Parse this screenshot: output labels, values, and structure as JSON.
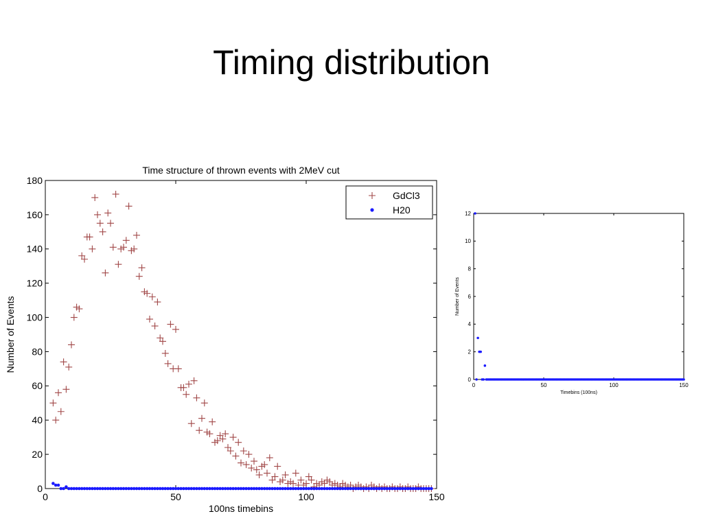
{
  "slide": {
    "title": "Timing distribution"
  },
  "chart_data": [
    {
      "type": "scatter",
      "title": "Time structure of thrown events with 2MeV cut",
      "xlabel": "100ns timebins",
      "ylabel": "Number of Events",
      "xlim": [
        0,
        150
      ],
      "ylim": [
        0,
        180
      ],
      "xticks": [
        0,
        50,
        100,
        150
      ],
      "yticks": [
        0,
        20,
        40,
        60,
        80,
        100,
        120,
        140,
        160,
        180
      ],
      "grid": false,
      "legend": "top-right",
      "series": [
        {
          "name": "GdCl3",
          "marker": "plus",
          "color": "#a04646",
          "x": [
            3,
            4,
            5,
            6,
            7,
            8,
            9,
            10,
            11,
            12,
            13,
            14,
            15,
            16,
            17,
            18,
            19,
            20,
            21,
            22,
            23,
            24,
            25,
            26,
            27,
            28,
            29,
            30,
            31,
            32,
            33,
            34,
            35,
            36,
            37,
            38,
            39,
            40,
            41,
            42,
            43,
            44,
            45,
            46,
            47,
            48,
            49,
            50,
            51,
            52,
            53,
            54,
            55,
            56,
            57,
            58,
            59,
            60,
            61,
            62,
            63,
            64,
            65,
            66,
            67,
            68,
            69,
            70,
            71,
            72,
            73,
            74,
            75,
            76,
            77,
            78,
            79,
            80,
            81,
            82,
            83,
            84,
            85,
            86,
            87,
            88,
            89,
            90,
            91,
            92,
            93,
            94,
            95,
            96,
            97,
            98,
            99,
            100,
            101,
            102,
            103,
            104,
            105,
            106,
            107,
            108,
            109,
            110,
            111,
            112,
            113,
            114,
            115,
            116,
            117,
            118,
            119,
            120,
            121,
            122,
            123,
            124,
            125,
            126,
            127,
            128,
            129,
            130,
            131,
            132,
            133,
            134,
            135,
            136,
            137,
            138,
            139,
            140,
            141,
            142,
            143,
            144,
            145,
            146,
            147,
            148
          ],
          "y": [
            50,
            40,
            56,
            45,
            74,
            58,
            71,
            84,
            100,
            106,
            105,
            136,
            134,
            147,
            147,
            140,
            170,
            160,
            155,
            150,
            126,
            161,
            155,
            141,
            172,
            131,
            140,
            141,
            145,
            165,
            139,
            140,
            148,
            124,
            129,
            115,
            114,
            99,
            112,
            95,
            109,
            88,
            86,
            79,
            73,
            96,
            70,
            93,
            70,
            59,
            59,
            55,
            61,
            38,
            63,
            53,
            34,
            41,
            50,
            33,
            32,
            39,
            27,
            28,
            31,
            29,
            32,
            24,
            22,
            30,
            19,
            27,
            15,
            22,
            14,
            20,
            12,
            16,
            11,
            8,
            13,
            14,
            9,
            18,
            5,
            7,
            13,
            4,
            5,
            8,
            3,
            4,
            3,
            9,
            2,
            5,
            2,
            3,
            7,
            5,
            1,
            3,
            2,
            4,
            3,
            5,
            4,
            2,
            3,
            2,
            1,
            3,
            2,
            1,
            2,
            0,
            1,
            2,
            1,
            0,
            1,
            0,
            2,
            1,
            0,
            1,
            0,
            1,
            0,
            0,
            1,
            0,
            0,
            1,
            0,
            0,
            1,
            0,
            0,
            0,
            1,
            0,
            0,
            0,
            0,
            0
          ]
        },
        {
          "name": "H20",
          "marker": "dot",
          "color": "#1a1aff",
          "x": [
            3,
            4,
            5,
            6,
            7,
            8,
            9,
            10,
            11,
            12,
            13,
            14,
            15,
            16,
            17,
            18,
            19,
            20,
            21,
            22,
            23,
            24,
            25,
            26,
            27,
            28,
            29,
            30,
            31,
            32,
            33,
            34,
            35,
            36,
            37,
            38,
            39,
            40,
            41,
            42,
            43,
            44,
            45,
            46,
            47,
            48,
            49,
            50,
            51,
            52,
            53,
            54,
            55,
            56,
            57,
            58,
            59,
            60,
            61,
            62,
            63,
            64,
            65,
            66,
            67,
            68,
            69,
            70,
            71,
            72,
            73,
            74,
            75,
            76,
            77,
            78,
            79,
            80,
            81,
            82,
            83,
            84,
            85,
            86,
            87,
            88,
            89,
            90,
            91,
            92,
            93,
            94,
            95,
            96,
            97,
            98,
            99,
            100,
            101,
            102,
            103,
            104,
            105,
            106,
            107,
            108,
            109,
            110,
            111,
            112,
            113,
            114,
            115,
            116,
            117,
            118,
            119,
            120,
            121,
            122,
            123,
            124,
            125,
            126,
            127,
            128,
            129,
            130,
            131,
            132,
            133,
            134,
            135,
            136,
            137,
            138,
            139,
            140,
            141,
            142,
            143,
            144,
            145,
            146,
            147,
            148
          ],
          "y": [
            3,
            2,
            2,
            0,
            0,
            1,
            0,
            0,
            0,
            0,
            0,
            0,
            0,
            0,
            0,
            0,
            0,
            0,
            0,
            0,
            0,
            0,
            0,
            0,
            0,
            0,
            0,
            0,
            0,
            0,
            0,
            0,
            0,
            0,
            0,
            0,
            0,
            0,
            0,
            0,
            0,
            0,
            0,
            0,
            0,
            0,
            0,
            0,
            0,
            0,
            0,
            0,
            0,
            0,
            0,
            0,
            0,
            0,
            0,
            0,
            0,
            0,
            0,
            0,
            0,
            0,
            0,
            0,
            0,
            0,
            0,
            0,
            0,
            0,
            0,
            0,
            0,
            0,
            0,
            0,
            0,
            0,
            0,
            0,
            0,
            0,
            0,
            0,
            0,
            0,
            0,
            0,
            0,
            0,
            0,
            0,
            0,
            0,
            0,
            0,
            0,
            0,
            0,
            0,
            0,
            0,
            0,
            0,
            0,
            0,
            0,
            0,
            0,
            0,
            0,
            0,
            0,
            0,
            0,
            0,
            0,
            0,
            0,
            0,
            0,
            0,
            0,
            0,
            0,
            0,
            0,
            0,
            0,
            0,
            0,
            0,
            0,
            0,
            0,
            0,
            0,
            0,
            0,
            0,
            0,
            0
          ]
        }
      ]
    },
    {
      "type": "scatter",
      "title": "",
      "xlabel": "Timebins (100ns)",
      "ylabel": "Number of Events",
      "xlim": [
        0,
        150
      ],
      "ylim": [
        0,
        12
      ],
      "xticks": [
        0,
        50,
        100,
        150
      ],
      "yticks": [
        0,
        2,
        4,
        6,
        8,
        10,
        12
      ],
      "grid": false,
      "legend": "none",
      "series": [
        {
          "marker": "dot",
          "color": "#1a1aff",
          "x": [
            1,
            2,
            3,
            4,
            5,
            6,
            7,
            8,
            9,
            10,
            11,
            12,
            13,
            14,
            15,
            16,
            17,
            18,
            19,
            20,
            21,
            22,
            23,
            24,
            25,
            26,
            27,
            28,
            29,
            30,
            31,
            32,
            33,
            34,
            35,
            36,
            37,
            38,
            39,
            40,
            41,
            42,
            43,
            44,
            45,
            46,
            47,
            48,
            49,
            50,
            51,
            52,
            53,
            54,
            55,
            56,
            57,
            58,
            59,
            60,
            61,
            62,
            63,
            64,
            65,
            66,
            67,
            68,
            69,
            70,
            71,
            72,
            73,
            74,
            75,
            76,
            77,
            78,
            79,
            80,
            81,
            82,
            83,
            84,
            85,
            86,
            87,
            88,
            89,
            90,
            91,
            92,
            93,
            94,
            95,
            96,
            97,
            98,
            99,
            100,
            101,
            102,
            103,
            104,
            105,
            106,
            107,
            108,
            109,
            110,
            111,
            112,
            113,
            114,
            115,
            116,
            117,
            118,
            119,
            120,
            121,
            122,
            123,
            124,
            125,
            126,
            127,
            128,
            129,
            130,
            131,
            132,
            133,
            134,
            135,
            136,
            137,
            138,
            139,
            140,
            141,
            142,
            143,
            144,
            145,
            146,
            147,
            148,
            149,
            150
          ],
          "y": [
            12,
            0,
            3,
            2,
            2,
            0,
            0,
            1,
            0,
            0,
            0,
            0,
            0,
            0,
            0,
            0,
            0,
            0,
            0,
            0,
            0,
            0,
            0,
            0,
            0,
            0,
            0,
            0,
            0,
            0,
            0,
            0,
            0,
            0,
            0,
            0,
            0,
            0,
            0,
            0,
            0,
            0,
            0,
            0,
            0,
            0,
            0,
            0,
            0,
            0,
            0,
            0,
            0,
            0,
            0,
            0,
            0,
            0,
            0,
            0,
            0,
            0,
            0,
            0,
            0,
            0,
            0,
            0,
            0,
            0,
            0,
            0,
            0,
            0,
            0,
            0,
            0,
            0,
            0,
            0,
            0,
            0,
            0,
            0,
            0,
            0,
            0,
            0,
            0,
            0,
            0,
            0,
            0,
            0,
            0,
            0,
            0,
            0,
            0,
            0,
            0,
            0,
            0,
            0,
            0,
            0,
            0,
            0,
            0,
            0,
            0,
            0,
            0,
            0,
            0,
            0,
            0,
            0,
            0,
            0,
            0,
            0,
            0,
            0,
            0,
            0,
            0,
            0,
            0,
            0,
            0,
            0,
            0,
            0,
            0,
            0,
            0,
            0,
            0,
            0,
            0,
            0,
            0,
            0,
            0,
            0,
            0,
            0,
            0,
            0
          ]
        }
      ]
    }
  ]
}
